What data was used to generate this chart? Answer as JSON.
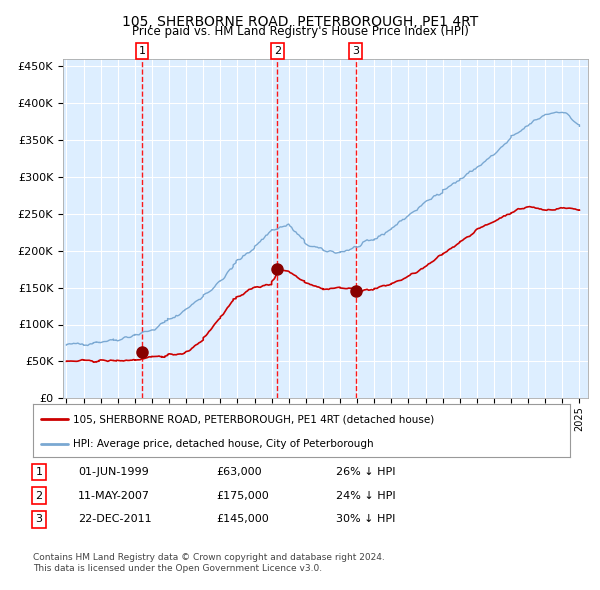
{
  "title": "105, SHERBORNE ROAD, PETERBOROUGH, PE1 4RT",
  "subtitle": "Price paid vs. HM Land Registry's House Price Index (HPI)",
  "legend_line1": "105, SHERBORNE ROAD, PETERBOROUGH, PE1 4RT (detached house)",
  "legend_line2": "HPI: Average price, detached house, City of Peterborough",
  "sale_label1": "1",
  "sale_date1": "01-JUN-1999",
  "sale_price1": "£63,000",
  "sale_hpi1": "26% ↓ HPI",
  "sale_label2": "2",
  "sale_date2": "11-MAY-2007",
  "sale_price2": "£175,000",
  "sale_hpi2": "24% ↓ HPI",
  "sale_label3": "3",
  "sale_date3": "22-DEC-2011",
  "sale_price3": "£145,000",
  "sale_hpi3": "30% ↓ HPI",
  "footer1": "Contains HM Land Registry data © Crown copyright and database right 2024.",
  "footer2": "This data is licensed under the Open Government Licence v3.0.",
  "red_color": "#cc0000",
  "blue_color": "#7aa8d2",
  "bg_color": "#ddeeff",
  "grid_color": "#ffffff",
  "sale_vline_color": "#ff0000",
  "ylim": [
    0,
    460000
  ],
  "yticks": [
    0,
    50000,
    100000,
    150000,
    200000,
    250000,
    300000,
    350000,
    400000,
    450000
  ],
  "xlim_start": 1994.8,
  "xlim_end": 2025.5
}
